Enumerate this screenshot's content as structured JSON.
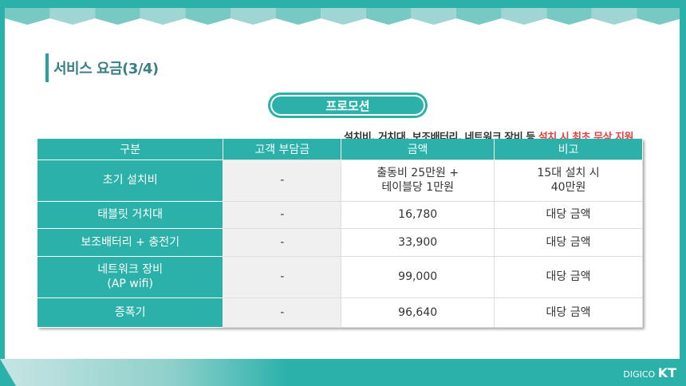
{
  "title": "서비스 요금(3/4)",
  "promo_label": "프로모션",
  "note": {
    "normal": "설치비, 거치대, 보조배터리, 네트워크 장비 등 ",
    "highlight": "설치 시 최초 무상 지원"
  },
  "table": {
    "headers": [
      "구분",
      "고객 부담금",
      "금액",
      "비고"
    ],
    "rows": [
      {
        "item": "초기 설치비",
        "customer": "-",
        "amount": "출동비 25만원 +\n테이블당 1만원",
        "remark": "15대 설치 시\n40만원"
      },
      {
        "item": "태블릿 거치대",
        "customer": "-",
        "amount": "16,780",
        "remark": "대당 금액"
      },
      {
        "item": "보조배터리 + 충전기",
        "customer": "-",
        "amount": "33,900",
        "remark": "대당 금액"
      },
      {
        "item": "네트워크 장비\n(AP wifi)",
        "customer": "-",
        "amount": "99,000",
        "remark": "대당 금액"
      },
      {
        "item": "증폭기",
        "customer": "-",
        "amount": "96,640",
        "remark": "대당 금액"
      }
    ]
  },
  "logo": {
    "prefix": "DIGICO",
    "brand": "KT"
  },
  "colors": {
    "accent": "#2bb1aa",
    "highlight": "#e8403f",
    "title": "#3a7f86"
  }
}
